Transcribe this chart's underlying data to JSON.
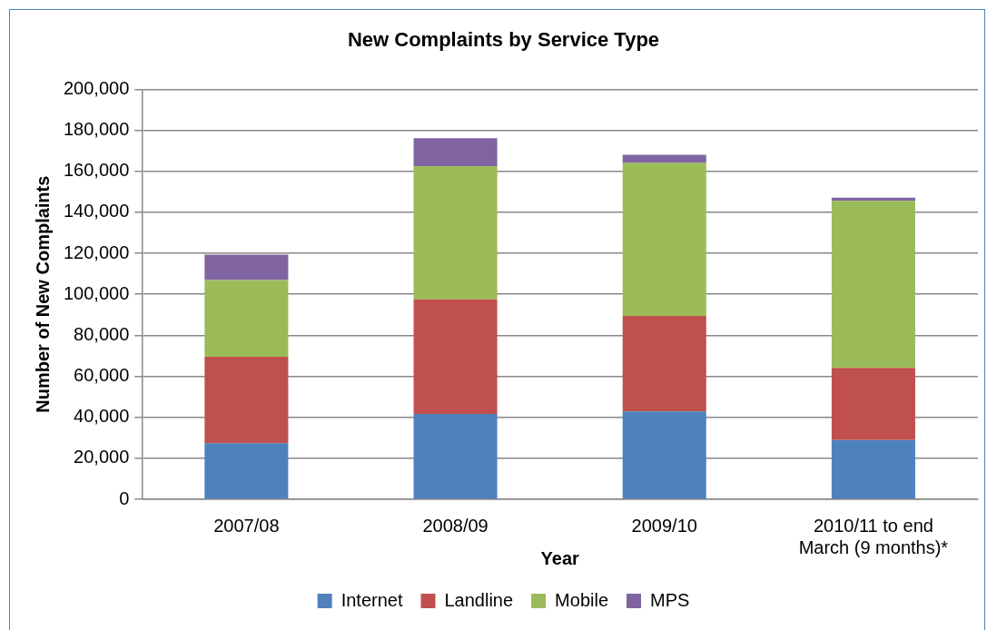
{
  "chart_data": {
    "type": "bar",
    "title": "New Complaints by Service Type",
    "xlabel": "Year",
    "ylabel": "Number of New Complaints",
    "categories": [
      "2007/08",
      "2008/09",
      "2009/10",
      "2010/11 to end March (9 months)*"
    ],
    "stacked": true,
    "series": [
      {
        "name": "Internet",
        "color": "#4f81bd",
        "values": [
          27300,
          41600,
          42900,
          28900
        ]
      },
      {
        "name": "Landline",
        "color": "#c0504d",
        "values": [
          42200,
          55900,
          46600,
          35200
        ]
      },
      {
        "name": "Mobile",
        "color": "#9bbb59",
        "values": [
          37500,
          65000,
          74600,
          81500
        ]
      },
      {
        "name": "MPS",
        "color": "#8064a2",
        "values": [
          12400,
          13700,
          4000,
          1500
        ]
      }
    ],
    "ylim": [
      0,
      200000
    ],
    "yticks": [
      0,
      {
        "value": 20000,
        "label": "20,000"
      },
      {
        "value": 40000,
        "label": "40,000"
      },
      {
        "value": 60000,
        "label": "60,000"
      },
      {
        "value": 80000,
        "label": "80,000"
      },
      {
        "value": 100000,
        "label": "100,000"
      },
      {
        "value": 120000,
        "label": "120,000"
      },
      {
        "value": 140000,
        "label": "140,000"
      },
      {
        "value": 160000,
        "label": "160,000"
      },
      {
        "value": 180000,
        "label": "180,000"
      },
      {
        "value": 200000,
        "label": "200,000"
      }
    ],
    "grid": "y",
    "legend": "bottom"
  }
}
